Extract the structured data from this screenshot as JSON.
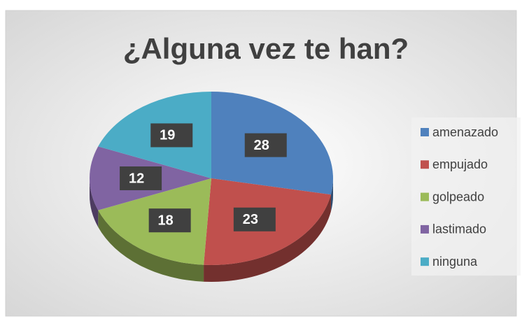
{
  "chart_data": {
    "type": "pie",
    "title": "¿Alguna vez te han?",
    "categories": [
      "amenazado",
      "empujado",
      "golpeado",
      "lastimado",
      "ninguna"
    ],
    "values": [
      28,
      23,
      18,
      12,
      19
    ],
    "colors": [
      "#4f81bd",
      "#c0504d",
      "#9bbb59",
      "#8064a2",
      "#4bacc6"
    ],
    "legend": "right"
  }
}
